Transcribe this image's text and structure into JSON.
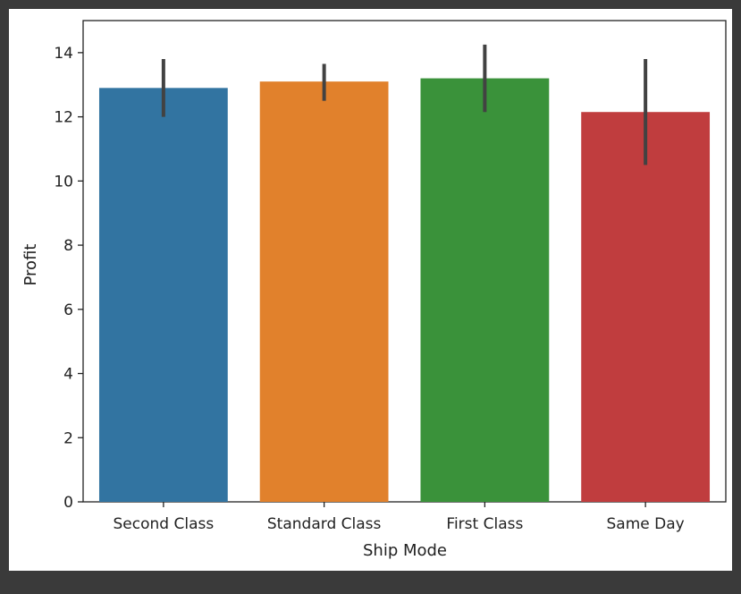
{
  "chart_data": {
    "type": "bar",
    "xlabel": "Ship Mode",
    "ylabel": "Profit",
    "ylim": [
      0,
      15
    ],
    "yticks": [
      0,
      2,
      4,
      6,
      8,
      10,
      12,
      14
    ],
    "grid": false,
    "categories": [
      "Second Class",
      "Standard Class",
      "First Class",
      "Same Day"
    ],
    "values": [
      12.9,
      13.1,
      13.2,
      12.15
    ],
    "error_low": [
      12.0,
      12.5,
      12.15,
      10.5
    ],
    "error_high": [
      13.8,
      13.65,
      14.25,
      13.8
    ],
    "colors": [
      "#3274a1",
      "#e1812c",
      "#3a923a",
      "#c03d3e"
    ],
    "error_color": "#424242"
  }
}
